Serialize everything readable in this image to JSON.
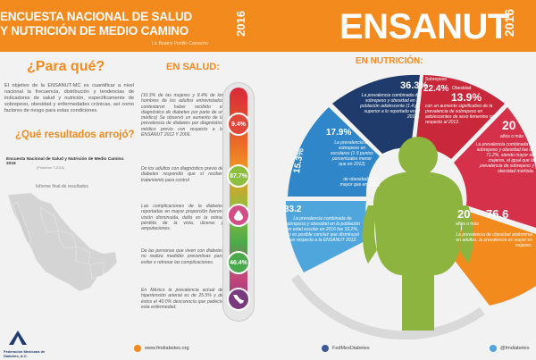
{
  "header_left": {
    "title_line1": "ENCUESTA NACIONAL DE SALUD",
    "title_line2": "Y NUTRICIÓN DE MEDIO CAMINO",
    "year": "2016",
    "author": "Lic Beatriz Portillo Camacho"
  },
  "header_right": {
    "title": "ENSANUT",
    "year": "2016"
  },
  "para_que": {
    "heading": "¿Para qué?",
    "text": "El objetivo de la ENSANUT-MC es cuantificar a nivel nacional la frecuencia, distribución y tendencias de indicadores de salud y nutrición, específicamente de sobrepeso, obesidad y enfermedades crónicas, así como factores de riesgo para estas condiciones."
  },
  "resultados": {
    "heading": "¿Qué resultados arrojó?",
    "doc_title": "Encuesta Nacional de Salud y Nutrición de Medio Camino",
    "doc_year": "2016",
    "doc_subtitle": "(Pirisehun T 2016)",
    "informe": "Informe final de resultados"
  },
  "en_salud": {
    "heading": "EN SALUD:",
    "items": [
      {
        "text": "(10.3% de las mujeres y 8.4% de los hombres de los adultos entrevistados contestaron haber recibido el diagnóstico de diabetes por parte de un médico) Se observó un aumento de la prevalencia de diabetes por diagnóstico médico previo con respecto a la ENSANUT 2012 Y 2006.",
        "value": "9.4%"
      },
      {
        "text": "Do los adultos con diagnóstico previo de diabetes respondió que sí reciben tratamiento para control",
        "value": "87.7%"
      },
      {
        "text": "Las complicaciones de la diabetes reportadas en mayor proporción fueron: visión disminuida, daño en la retina, pérdida de la vista, úlceras y amputaciones.",
        "value": ""
      },
      {
        "text": "De las personas que viven con diabetes no realiza medidas preventivas para evitar o retrasar las complicaciones.",
        "value": "46.4%"
      },
      {
        "text": "En México la prevalencia actual de hipertensión arterial es de 25.5% y de éstos el 40.0% desconocía que padecía esta enfermedad.",
        "value": ""
      }
    ]
  },
  "en_nutricion": {
    "heading": "EN NUTRICIÓN:",
    "seg_blue_light_left": {
      "num": "33.2",
      "text": "La prevalencia combinada de sobrepeso y obesidad en la población en edad escolar en 2016 fue 33.2%, no es posible concluir que disminuyó con respecto a la ENSANUT 2012."
    },
    "seg_blue_top_left": {
      "num": "17.9%",
      "text": "La prevalencia de sobrepeso en escolares (1.9 puntos porcentuales menor que en 2012)"
    },
    "seg_blue_top_left_b": {
      "num": "15.3%",
      "text": "de obesidad (0.9 mayor que en 2012)"
    },
    "seg_navy": {
      "num": "36.3%",
      "text": "La prevalencia combinada de sobrepeso y obesidad en la población adolescente (1.4 pp superior a lo reportado en el 2012)."
    },
    "seg_red": {
      "label1": "Sobrepeso",
      "num1": "22.4%",
      "label2": "Obesidad",
      "num2": "13.9%",
      "text": "con un aumento significativo de la prevalencia de sobrepeso en adolescentes de sexo femenino con respecto al 2012."
    },
    "seg_crimson": {
      "num": "20",
      "small": "años o más",
      "text": "La prevalencia combinada de sobrepeso y obesidad fue de 71.2%, siendo mayor en mujeres, el igual que la prevalencia de sobrepeso y obesidad mórbida."
    },
    "seg_orange": {
      "num": "20",
      "small": "años o más",
      "num2": "76.6",
      "text": "La prevalencia de obesidad abdominal en adultos, la prevalencia es mayor en mujeres."
    }
  },
  "footer": {
    "org_name": "Federación Mexicana de Diabetes, A.C.",
    "website": "www.fmdiabetes.org",
    "facebook": "FedMexDiabetes",
    "twitter": "@fmdiabetes"
  },
  "colors": {
    "orange": "#f28a1e",
    "blue_light": "#4fa6dc",
    "navy": "#1f3b6b",
    "red": "#c8283a",
    "crimson": "#d6314a",
    "figure_green": "#8db43e"
  }
}
